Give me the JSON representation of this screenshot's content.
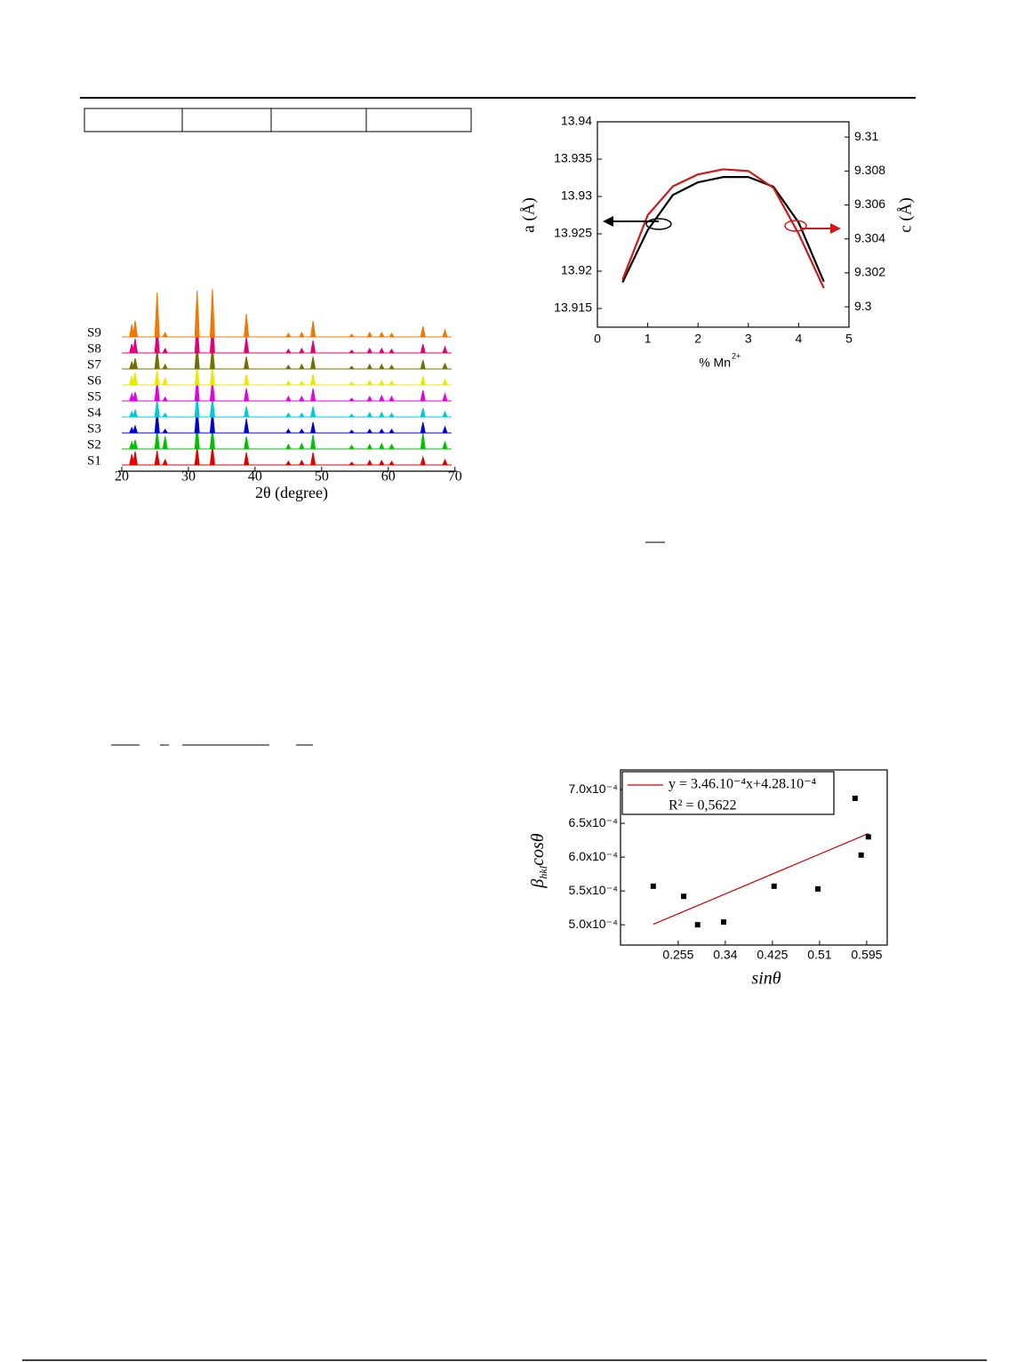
{
  "chart_data": [
    {
      "type": "xrd",
      "xlabel": "2θ (degree)",
      "xlim": [
        19.5,
        70.3
      ],
      "xticks": [
        20,
        30,
        40,
        50,
        60,
        70
      ],
      "x": [
        21.5,
        22.0,
        25.3,
        26.5,
        31.3,
        33.6,
        38.7,
        45.0,
        47.0,
        48.7,
        54.5,
        57.2,
        59.0,
        60.5,
        65.2,
        68.5
      ],
      "series": [
        {
          "name": "S1",
          "color": "#e00000",
          "values": [
            12,
            15,
            16,
            6,
            20,
            22,
            14,
            4,
            5,
            14,
            3,
            5,
            5,
            4,
            9,
            6
          ]
        },
        {
          "name": "S2",
          "color": "#00c000",
          "values": [
            8,
            10,
            22,
            14,
            28,
            24,
            14,
            5,
            6,
            16,
            4,
            5,
            6,
            5,
            18,
            8
          ]
        },
        {
          "name": "S3",
          "color": "#0000d0",
          "values": [
            6,
            8,
            26,
            4,
            30,
            26,
            16,
            4,
            4,
            12,
            3,
            4,
            4,
            4,
            12,
            7
          ]
        },
        {
          "name": "S4",
          "color": "#00c8d8",
          "values": [
            6,
            8,
            20,
            4,
            24,
            22,
            12,
            4,
            4,
            12,
            3,
            5,
            5,
            4,
            10,
            6
          ]
        },
        {
          "name": "S5",
          "color": "#e000e0",
          "values": [
            8,
            10,
            24,
            4,
            26,
            24,
            14,
            5,
            5,
            14,
            3,
            5,
            6,
            5,
            12,
            8
          ]
        },
        {
          "name": "S6",
          "color": "#e8e800",
          "values": [
            10,
            14,
            16,
            8,
            20,
            20,
            12,
            4,
            4,
            12,
            3,
            5,
            5,
            4,
            10,
            6
          ]
        },
        {
          "name": "S7",
          "color": "#707000",
          "values": [
            8,
            12,
            22,
            5,
            28,
            26,
            14,
            4,
            5,
            14,
            3,
            5,
            5,
            4,
            10,
            6
          ]
        },
        {
          "name": "S8",
          "color": "#e0007a",
          "values": [
            10,
            16,
            30,
            5,
            34,
            34,
            18,
            4,
            5,
            14,
            3,
            5,
            5,
            4,
            10,
            7
          ]
        },
        {
          "name": "S9",
          "color": "#f07800",
          "values": [
            14,
            18,
            50,
            5,
            52,
            54,
            26,
            4,
            5,
            18,
            3,
            5,
            5,
            4,
            12,
            8
          ]
        }
      ]
    },
    {
      "type": "line",
      "xlabel": "% Mn",
      "xlabel_sup": "2+",
      "ylabel": "a (Å)",
      "y2label": "c (Å)",
      "xlim": [
        0,
        5
      ],
      "xticks": [
        0,
        1,
        2,
        3,
        4,
        5
      ],
      "ylim": [
        13.9125,
        13.94
      ],
      "yticks": [
        13.915,
        13.92,
        13.925,
        13.93,
        13.935,
        13.94
      ],
      "y2lim": [
        9.2988,
        9.3109
      ],
      "y2ticks": [
        9.3,
        9.302,
        9.304,
        9.306,
        9.308,
        9.31
      ],
      "x": [
        0.5,
        1.0,
        1.5,
        2.0,
        2.5,
        3.0,
        3.5,
        4.0,
        4.5
      ],
      "series": [
        {
          "color": "#000000",
          "values": [
            13.9185,
            13.9255,
            13.9302,
            13.9319,
            13.9326,
            13.9326,
            13.9313,
            13.9265,
            13.9186
          ]
        },
        {
          "color": "#d01818",
          "axis": "y2",
          "values": [
            9.3016,
            9.3054,
            9.3071,
            9.3078,
            9.3081,
            9.308,
            9.307,
            9.3043,
            9.3011
          ]
        }
      ]
    },
    {
      "type": "scatter",
      "xlabel": "sinθ",
      "ylabel": "β",
      "ylabel_sub": "hkl",
      "ylabel_rest": "cosθ",
      "xlim": [
        0.151,
        0.632
      ],
      "xticks": [
        0.255,
        0.34,
        0.425,
        0.51,
        0.595
      ],
      "ylim": [
        0.00047,
        0.000729
      ],
      "yticks": [
        {
          "value": 0.0005,
          "label": "5.0x10⁻⁴"
        },
        {
          "value": 0.00055,
          "label": "5.5x10⁻⁴"
        },
        {
          "value": 0.0006,
          "label": "6.0x10⁻⁴"
        },
        {
          "value": 0.00065,
          "label": "6.5x10⁻⁴"
        },
        {
          "value": 0.0007,
          "label": "7.0x10⁻⁴"
        }
      ],
      "x": [
        0.21,
        0.265,
        0.29,
        0.337,
        0.428,
        0.507,
        0.574,
        0.585,
        0.598
      ],
      "values": [
        0.000557,
        0.000542,
        0.0005,
        0.000504,
        0.000557,
        0.000553,
        0.000687,
        0.000603,
        0.00063
      ],
      "color": "#000000",
      "fit": {
        "color": "#d00000",
        "slope": 0.000346,
        "intercept": 0.000428,
        "x": [
          0.21,
          0.598
        ],
        "label": "y = 3.46.10⁻⁴x+4.28.10⁻⁴",
        "r2_label": "R² = 0,5622"
      }
    }
  ]
}
